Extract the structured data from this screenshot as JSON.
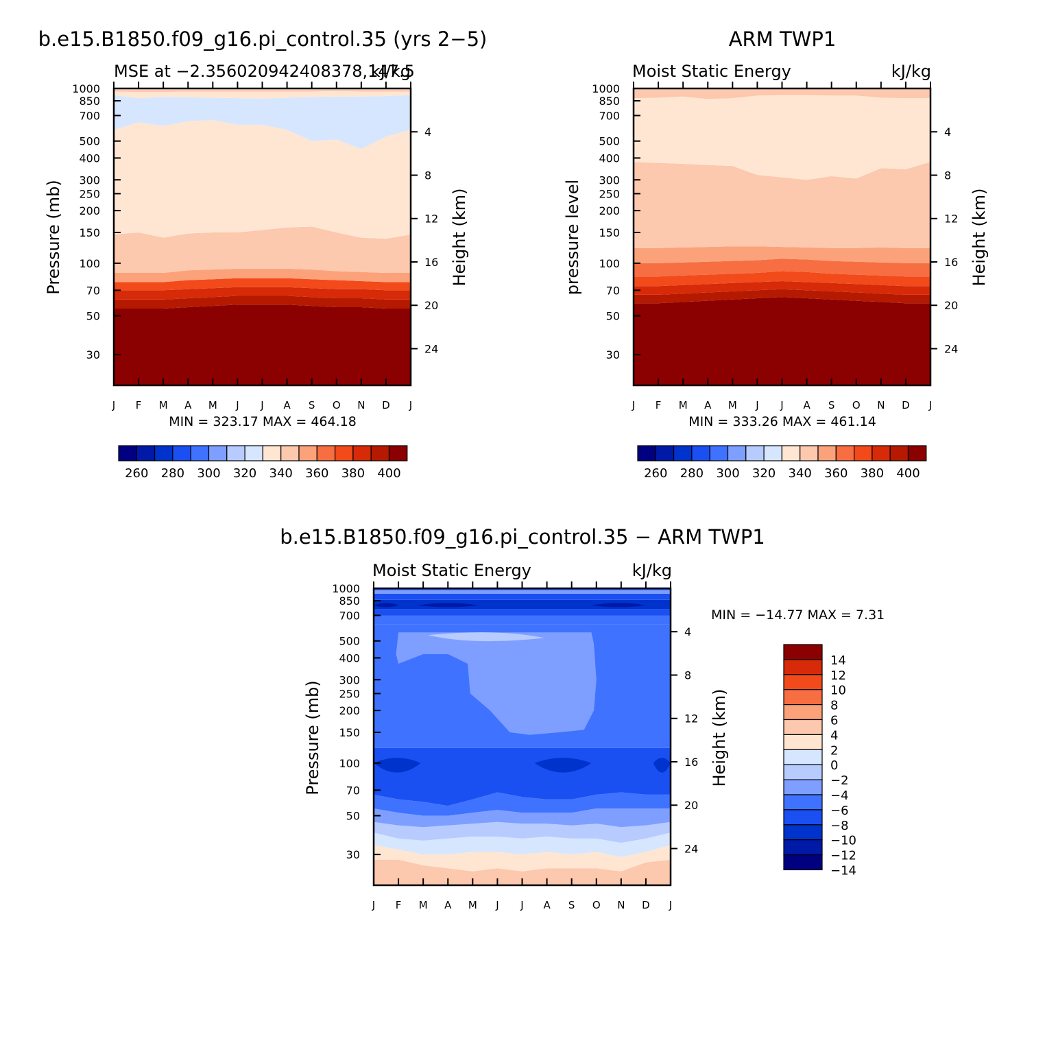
{
  "figure": {
    "panel_model": {
      "main_title": "b.e15.B1850.f09_g16.pi_control.35 (yrs 2−5)",
      "left_string": "MSE at −2.356020942408378,147.5",
      "right_string": "kJ/kg",
      "y_left_label": "Pressure (mb)",
      "y_right_label": "Height (km)",
      "stats": "MIN = 323.17 MAX = 464.18"
    },
    "panel_obs": {
      "main_title": "ARM TWP1",
      "left_string": "Moist Static Energy",
      "right_string": "kJ/kg",
      "y_left_label": "pressure level",
      "y_right_label": "Height (km)",
      "stats": "MIN = 333.26 MAX = 461.14"
    },
    "panel_diff": {
      "main_title": "b.e15.B1850.f09_g16.pi_control.35 − ARM TWP1",
      "left_string": "Moist Static Energy",
      "right_string": "kJ/kg",
      "y_left_label": "Pressure (mb)",
      "y_right_label": "Height (km)",
      "stats": "MIN = −14.77 MAX =    7.31"
    }
  },
  "chart_data": [
    {
      "type": "heatmap",
      "panel": "model",
      "x_ticks": [
        "J",
        "F",
        "M",
        "A",
        "M",
        "J",
        "J",
        "A",
        "S",
        "O",
        "N",
        "D",
        "J"
      ],
      "y_ticks_pressure": [
        30,
        50,
        70,
        100,
        150,
        200,
        250,
        300,
        400,
        500,
        700,
        850,
        1000
      ],
      "y_ticks_height_km": [
        24,
        20,
        16,
        12,
        8,
        4
      ],
      "ylim_pressure": [
        1000,
        20
      ],
      "colorbar_levels": [
        260,
        280,
        300,
        320,
        340,
        360,
        380,
        400
      ],
      "contour_boundaries_pressure": {
        "b400": [
          55,
          55,
          55,
          56,
          57,
          58,
          58,
          58,
          57,
          56,
          56,
          55,
          55
        ],
        "b390": [
          62,
          62,
          62,
          63,
          64,
          65,
          65,
          65,
          64,
          63,
          63,
          62,
          62
        ],
        "b380": [
          70,
          70,
          70,
          71,
          72,
          73,
          73,
          73,
          72,
          71,
          71,
          70,
          70
        ],
        "b370": [
          78,
          78,
          78,
          80,
          81,
          82,
          82,
          82,
          81,
          80,
          79,
          78,
          78
        ],
        "b360": [
          88,
          88,
          88,
          91,
          92,
          93,
          93,
          93,
          92,
          90,
          89,
          88,
          88
        ],
        "b350": [
          146,
          150,
          140,
          148,
          150,
          150,
          155,
          160,
          162,
          150,
          140,
          138,
          146
        ],
        "b340": [
          580,
          640,
          610,
          650,
          660,
          620,
          620,
          580,
          500,
          510,
          450,
          530,
          580
        ],
        "b330": [
          915,
          880,
          895,
          890,
          885,
          880,
          875,
          885,
          895,
          900,
          900,
          905,
          915
        ],
        "b340_lower": [
          960,
          955,
          955,
          960,
          960,
          960,
          958,
          960,
          960,
          965,
          960,
          960,
          960
        ],
        "b350_lower": [
          985,
          985,
          985,
          985,
          985,
          985,
          985,
          985,
          985,
          985,
          985,
          985,
          985
        ]
      },
      "min": 323.17,
      "max": 464.18
    },
    {
      "type": "heatmap",
      "panel": "obs",
      "x_ticks": [
        "J",
        "F",
        "M",
        "A",
        "M",
        "J",
        "J",
        "A",
        "S",
        "O",
        "N",
        "D",
        "J"
      ],
      "y_ticks_pressure": [
        30,
        50,
        70,
        100,
        150,
        200,
        250,
        300,
        400,
        500,
        700,
        850,
        1000
      ],
      "y_ticks_height_km": [
        24,
        20,
        16,
        12,
        8,
        4
      ],
      "ylim_pressure": [
        1000,
        20
      ],
      "colorbar_levels": [
        260,
        280,
        300,
        320,
        340,
        360,
        380,
        400
      ],
      "contour_boundaries_pressure": {
        "b400": [
          59,
          59,
          60,
          61,
          62,
          63,
          64,
          63,
          62,
          61,
          60,
          59,
          59
        ],
        "b390": [
          66,
          66,
          67,
          68,
          69,
          70,
          71,
          70,
          69,
          68,
          67,
          66,
          66
        ],
        "b380": [
          74,
          74,
          75,
          76,
          77,
          78,
          79,
          78,
          77,
          76,
          75,
          74,
          74
        ],
        "b370": [
          84,
          84,
          85,
          86,
          87,
          88,
          90,
          89,
          87,
          86,
          85,
          84,
          84
        ],
        "b360": [
          100,
          100,
          101,
          102,
          103,
          104,
          106,
          105,
          103,
          102,
          101,
          100,
          100
        ],
        "b350": [
          122,
          122,
          123,
          124,
          125,
          125,
          124,
          123,
          122,
          122,
          123,
          122,
          122
        ],
        "b340": [
          380,
          375,
          370,
          365,
          360,
          320,
          310,
          300,
          315,
          305,
          350,
          345,
          380
        ],
        "b330_lower": [
          880,
          885,
          900,
          870,
          880,
          910,
          915,
          915,
          910,
          910,
          885,
          880,
          880
        ]
      },
      "min": 333.26,
      "max": 461.14
    },
    {
      "type": "heatmap",
      "panel": "difference",
      "x_ticks": [
        "J",
        "F",
        "M",
        "A",
        "M",
        "J",
        "J",
        "A",
        "S",
        "O",
        "N",
        "D",
        "J"
      ],
      "y_ticks_pressure": [
        30,
        50,
        70,
        100,
        150,
        200,
        250,
        300,
        400,
        500,
        700,
        850,
        1000
      ],
      "y_ticks_height_km": [
        24,
        20,
        16,
        12,
        8,
        4
      ],
      "ylim_pressure": [
        1000,
        20
      ],
      "colorbar_levels": [
        -14,
        -12,
        -10,
        -8,
        -6,
        -4,
        -2,
        0,
        2,
        4,
        6,
        8,
        10,
        12,
        14
      ],
      "min": -14.77,
      "max": 7.31
    }
  ],
  "colors": {
    "mse_fills": [
      "#000080",
      "#0019a6",
      "#0033cc",
      "#1a4ff2",
      "#3f72ff",
      "#7e9fff",
      "#b7cbff",
      "#d6e6ff",
      "#ffe6d2",
      "#fcc8ae",
      "#fba27a",
      "#f66e42",
      "#f24a1a",
      "#d62a08",
      "#b51a00",
      "#8b0000"
    ],
    "diff_fills": [
      "#000080",
      "#0019a6",
      "#0033cc",
      "#1a4ff2",
      "#3f72ff",
      "#7e9fff",
      "#b7cbff",
      "#d6e6ff",
      "#ffe6d2",
      "#fcc8ae",
      "#fba27a",
      "#f66e42",
      "#f24a1a",
      "#d62a08",
      "#8b0000"
    ]
  }
}
